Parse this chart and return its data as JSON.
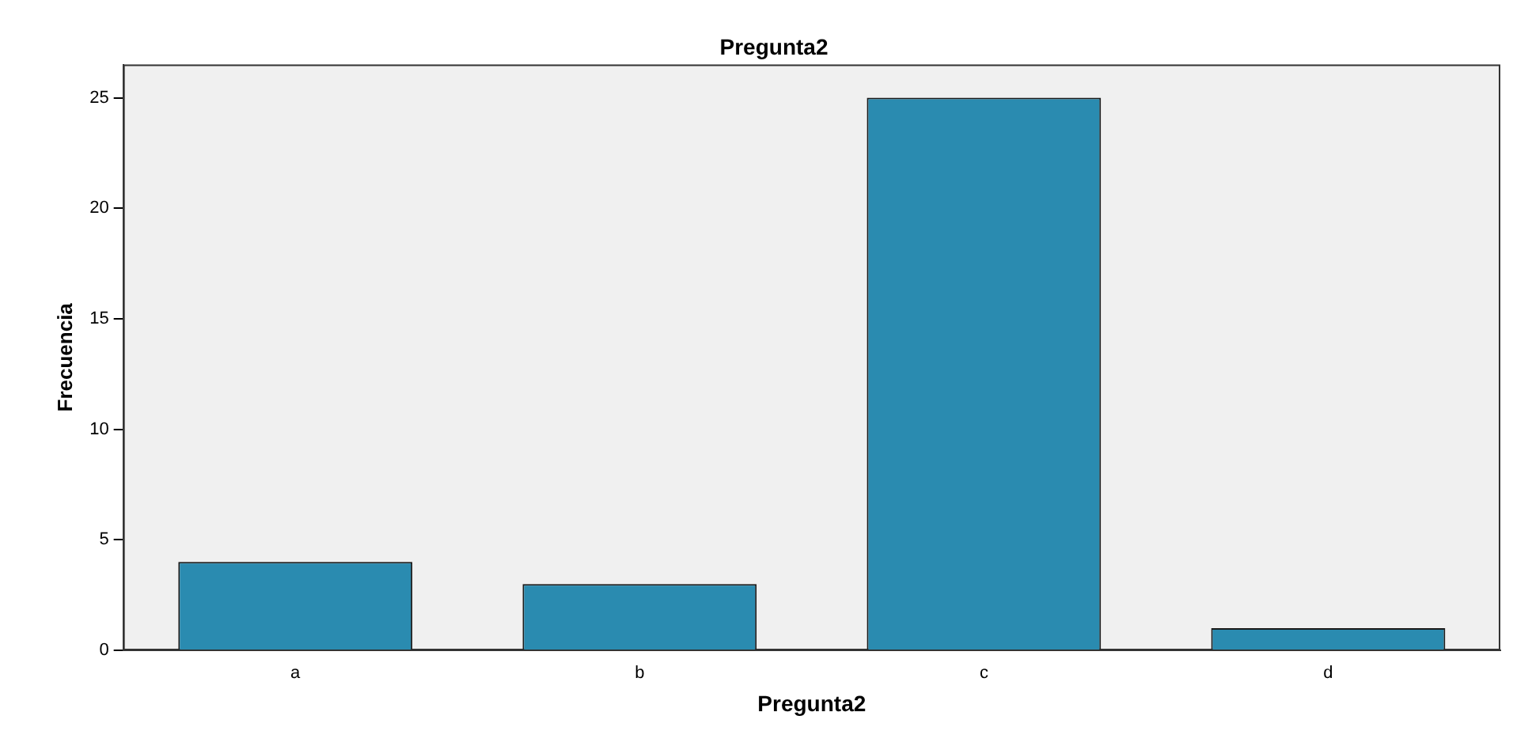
{
  "chart_data": {
    "type": "bar",
    "title": "Pregunta2",
    "xlabel": "Pregunta2",
    "ylabel": "Frecuencia",
    "categories": [
      "a",
      "b",
      "c",
      "d"
    ],
    "values": [
      4,
      3,
      25,
      1
    ],
    "color": "#2a8bb0",
    "ylim": [
      0,
      26.5
    ],
    "yticks": [
      0,
      5,
      10,
      15,
      20,
      25
    ],
    "grid": false,
    "legend": false
  }
}
